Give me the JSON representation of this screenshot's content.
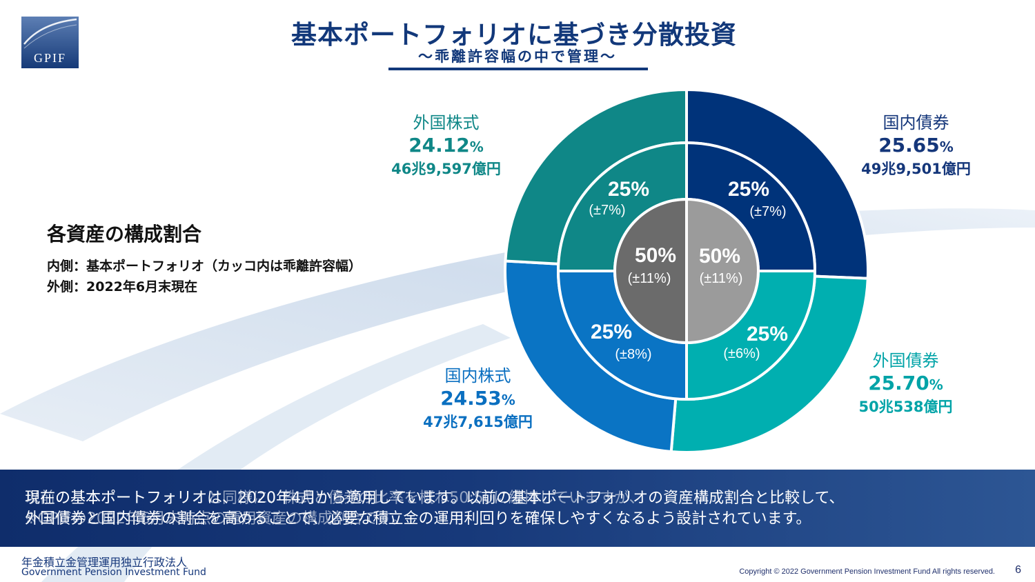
{
  "title": "基本ポートフォリオに基づき分散投資",
  "subtitle": "～乖離許容幅の中で管理～",
  "logo_text": "GPIF",
  "colors": {
    "brand_navy": "#12387a",
    "domestic_bonds": "#00337a",
    "foreign_bonds": "#00afb0",
    "domestic_equity": "#0a74c4",
    "foreign_equity": "#0f8787",
    "bonds_total": "#9b9b9b",
    "equity_total": "#6b6b6b"
  },
  "side": {
    "heading": "各資産の構成割合",
    "line1": "内側：基本ポートフォリオ（カッコ内は乖離許容幅）",
    "line2": "外側：2022年6月末現在"
  },
  "chart_data": {
    "type": "pie",
    "title": "基本ポートフォリオに基づき分散投資",
    "outer_ring": [
      {
        "name": "国内債券",
        "value": 25.65,
        "pct_label": "25.65",
        "amount": "49兆9,501億円",
        "color": "#00337a"
      },
      {
        "name": "外国債券",
        "value": 25.7,
        "pct_label": "25.70",
        "amount": "50兆538億円",
        "color": "#00afb0"
      },
      {
        "name": "国内株式",
        "value": 24.53,
        "pct_label": "24.53",
        "amount": "47兆7,615億円",
        "color": "#0a74c4"
      },
      {
        "name": "外国株式",
        "value": 24.12,
        "pct_label": "24.12",
        "amount": "46兆9,597億円",
        "color": "#0f8787"
      }
    ],
    "middle_ring": [
      {
        "name": "国内債券",
        "value": 25,
        "label": "25%",
        "range": "(±7%)",
        "color": "#00337a"
      },
      {
        "name": "外国債券",
        "value": 25,
        "label": "25%",
        "range": "(±6%)",
        "color": "#00afb0"
      },
      {
        "name": "国内株式",
        "value": 25,
        "label": "25%",
        "range": "(±8%)",
        "color": "#0a74c4"
      },
      {
        "name": "外国株式",
        "value": 25,
        "label": "25%",
        "range": "(±7%)",
        "color": "#0f8787"
      }
    ],
    "inner_ring": [
      {
        "value": 50,
        "label": "50%",
        "range": "(±11%)",
        "color": "#9b9b9b"
      },
      {
        "value": 50,
        "label": "50%",
        "range": "(±11%)",
        "color": "#6b6b6b"
      }
    ],
    "percent_unit": "%"
  },
  "banner": {
    "line1": "現在の基本ポートフォリオは、2020年4月から適用しています。以前の基本ポートフォリオの資産構成割合と比較して、",
    "line2": "外国債券と国内債券の割合を高めることで、必要な積立金の運用利回りを確保しやすくなるよう設計されています。",
    "ghost1": "以前の基本ポートフォリオと同様に、株式と債券の比率を概ね50:50に維持していますが、",
    "ghost2": "※GPIFの2022年6月末時点の運用資産の構成割合です。"
  },
  "footer": {
    "org_ja": "年金積立金管理運用独立行政法人",
    "org_en": "Government Pension Investment Fund",
    "copyright": "Copyright © 2022 Government Pension Investment Fund All rights reserved.",
    "page": "6"
  }
}
